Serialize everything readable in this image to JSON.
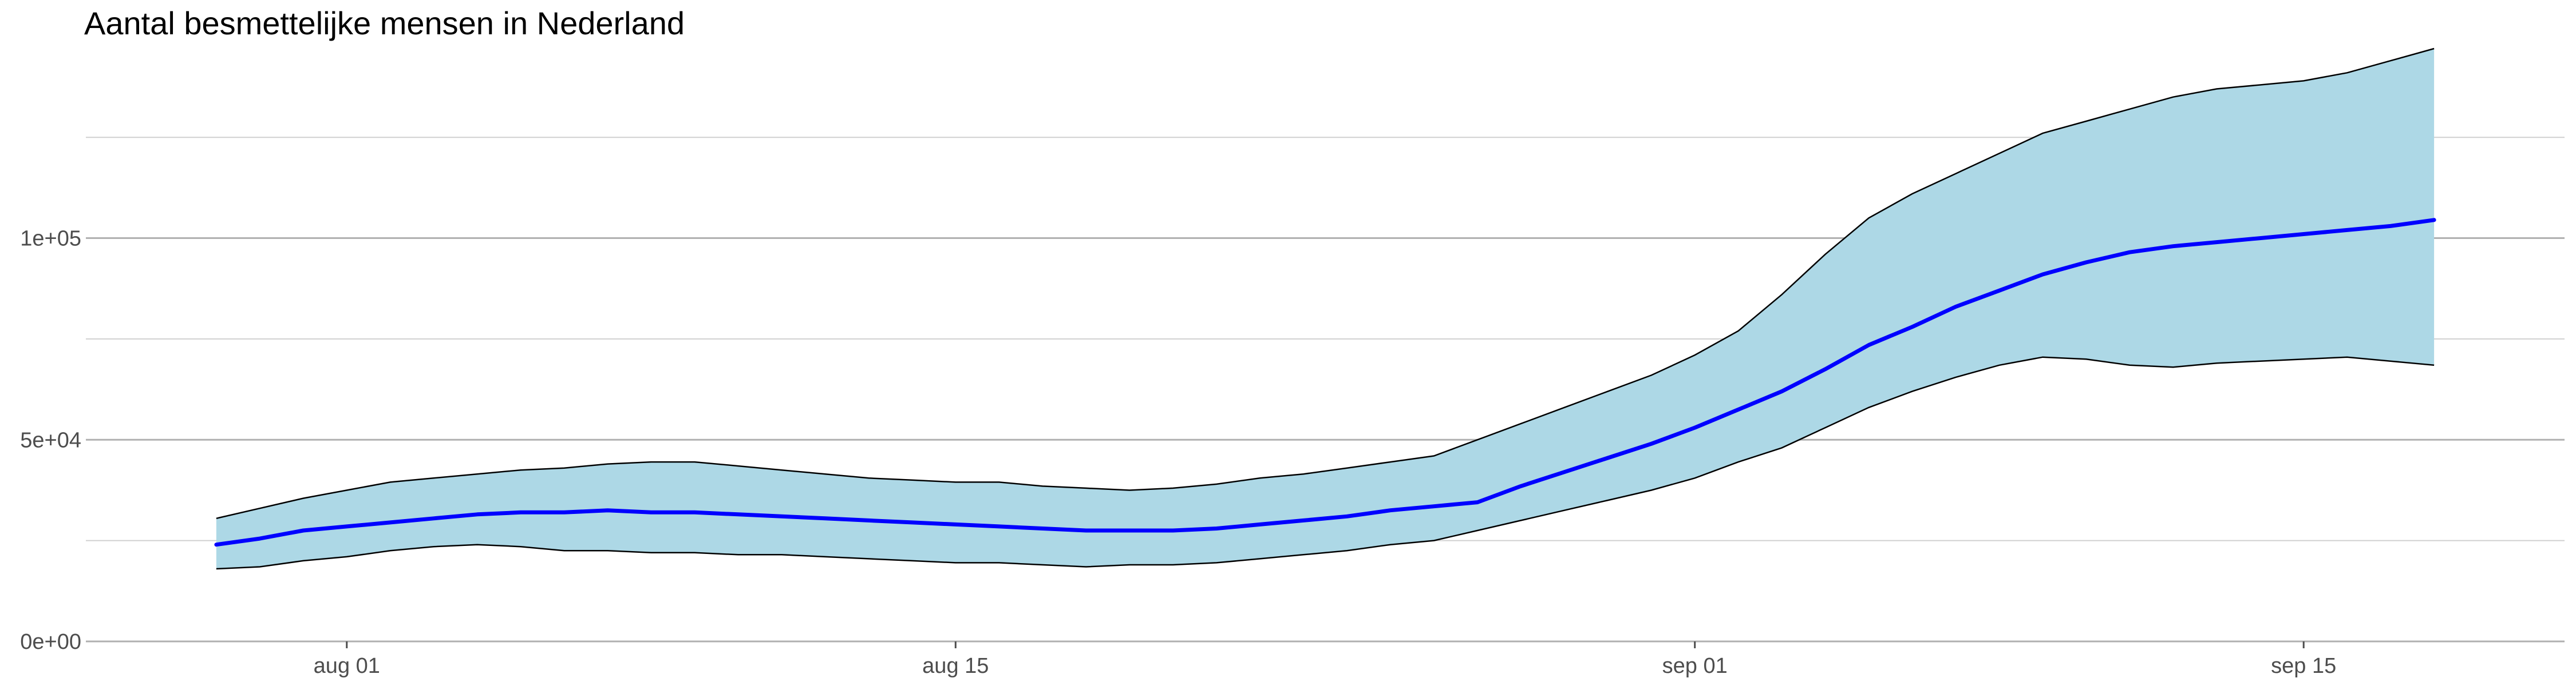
{
  "chart_data": {
    "type": "area",
    "title": "Aantal besmettelijke mensen in Nederland",
    "xlabel": "",
    "ylabel": "",
    "x_axis": {
      "type": "date",
      "range": [
        "2020-07-26",
        "2020-09-21"
      ],
      "ticks": [
        {
          "date": "2020-08-01",
          "label": "aug 01"
        },
        {
          "date": "2020-08-15",
          "label": "aug 15"
        },
        {
          "date": "2020-09-01",
          "label": "sep 01"
        },
        {
          "date": "2020-09-15",
          "label": "sep 15"
        }
      ]
    },
    "y_axis": {
      "range": [
        0,
        147000
      ],
      "ticks": [
        {
          "value": 0,
          "label": "0e+00"
        },
        {
          "value": 50000,
          "label": "5e+04"
        },
        {
          "value": 100000,
          "label": "1e+05"
        }
      ],
      "minor_gridlines": [
        25000,
        75000,
        125000
      ]
    },
    "grid": true,
    "legend": "none",
    "colors": {
      "band_fill": "#add8e6",
      "band_edge": "#000000",
      "line": "#0000ff",
      "gridline": "#d0d0d0",
      "major_gridline": "#b0b0b0"
    },
    "x": [
      "2020-07-29",
      "2020-07-30",
      "2020-07-31",
      "2020-08-01",
      "2020-08-02",
      "2020-08-03",
      "2020-08-04",
      "2020-08-05",
      "2020-08-06",
      "2020-08-07",
      "2020-08-08",
      "2020-08-09",
      "2020-08-10",
      "2020-08-11",
      "2020-08-12",
      "2020-08-13",
      "2020-08-14",
      "2020-08-15",
      "2020-08-16",
      "2020-08-17",
      "2020-08-18",
      "2020-08-19",
      "2020-08-20",
      "2020-08-21",
      "2020-08-22",
      "2020-08-23",
      "2020-08-24",
      "2020-08-25",
      "2020-08-26",
      "2020-08-27",
      "2020-08-28",
      "2020-08-29",
      "2020-08-30",
      "2020-08-31",
      "2020-09-01",
      "2020-09-02",
      "2020-09-03",
      "2020-09-04",
      "2020-09-05",
      "2020-09-06",
      "2020-09-07",
      "2020-09-08",
      "2020-09-09",
      "2020-09-10",
      "2020-09-11",
      "2020-09-12",
      "2020-09-13",
      "2020-09-14",
      "2020-09-15",
      "2020-09-16",
      "2020-09-17",
      "2020-09-18"
    ],
    "series": [
      {
        "role": "band",
        "lower": [
          18000,
          18500,
          20000,
          21000,
          22500,
          23500,
          24000,
          23500,
          22500,
          22500,
          22000,
          22000,
          21500,
          21500,
          21000,
          20500,
          20000,
          19500,
          19500,
          19000,
          18500,
          19000,
          19000,
          19500,
          20500,
          21500,
          22500,
          24000,
          25000,
          27500,
          30000,
          32500,
          35000,
          37500,
          40500,
          44500,
          48000,
          53000,
          58000,
          62000,
          65500,
          68500,
          70500,
          70000,
          68500,
          68000,
          69000,
          69500,
          70000,
          70500,
          69500,
          68500
        ],
        "upper": [
          30500,
          33000,
          35500,
          37500,
          39500,
          40500,
          41500,
          42500,
          43000,
          44000,
          44500,
          44500,
          43500,
          42500,
          41500,
          40500,
          40000,
          39500,
          39500,
          38500,
          38000,
          37500,
          38000,
          39000,
          40500,
          41500,
          43000,
          44500,
          46000,
          50000,
          54000,
          58000,
          62000,
          66000,
          71000,
          77000,
          86000,
          96000,
          105000,
          111000,
          116000,
          121000,
          126000,
          129000,
          132000,
          135000,
          137000,
          138000,
          139000,
          141000,
          144000,
          147000
        ]
      },
      {
        "role": "line",
        "values": [
          24000,
          25500,
          27500,
          28500,
          29500,
          30500,
          31500,
          32000,
          32000,
          32500,
          32000,
          32000,
          31500,
          31000,
          30500,
          30000,
          29500,
          29000,
          28500,
          28000,
          27500,
          27500,
          27500,
          28000,
          29000,
          30000,
          31000,
          32500,
          33500,
          34500,
          38500,
          42000,
          45500,
          49000,
          53000,
          57500,
          62000,
          67500,
          73500,
          78000,
          83000,
          87000,
          91000,
          94000,
          96500,
          98000,
          99000,
          100000,
          101000,
          102000,
          103000,
          104500
        ]
      }
    ]
  }
}
